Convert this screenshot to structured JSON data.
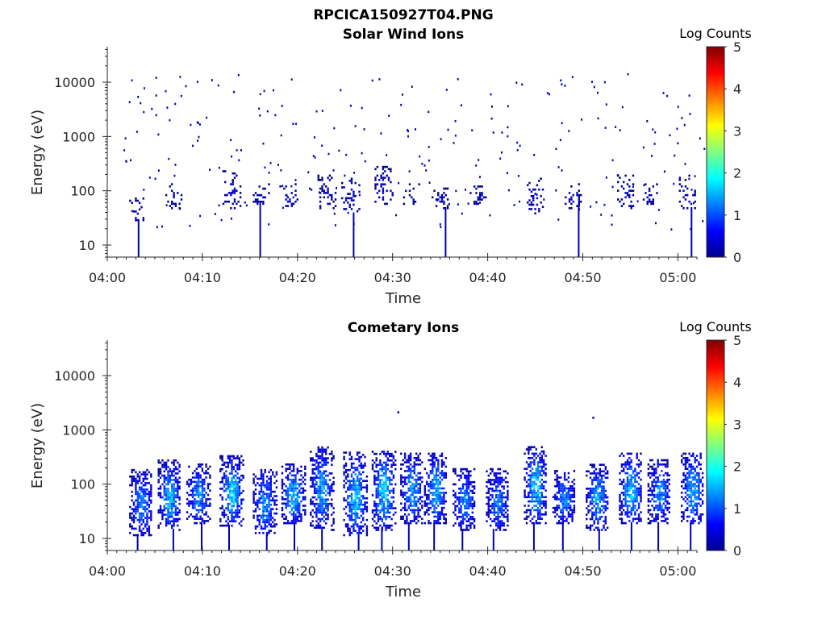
{
  "figure_title": "RPCICA150927T04.PNG",
  "chart_data": [
    {
      "type": "heatmap",
      "title": "Solar Wind Ions",
      "xlabel": "Time",
      "ylabel": "Energy (eV)",
      "x_ticks": [
        "04:00",
        "04:10",
        "04:20",
        "04:30",
        "04:40",
        "04:50",
        "05:00"
      ],
      "x_range": [
        "04:00",
        "05:02"
      ],
      "y_scale": "log",
      "y_ticks": [
        10,
        100,
        1000,
        10000
      ],
      "y_range": [
        6,
        45000
      ],
      "colorbar": {
        "label": "Log Counts",
        "range": [
          0,
          5
        ],
        "ticks": [
          0,
          1,
          2,
          3,
          4,
          5
        ],
        "colormap": "jet"
      },
      "description": "sparse scattered counts, mostly log counts near 0-0.5, clustered 30-300 eV with scattered dots up to ~15000 eV",
      "bursts": [
        {
          "time": "04:03",
          "e_low": 30,
          "e_high": 80,
          "peak": 0.3
        },
        {
          "time": "04:07",
          "e_low": 50,
          "e_high": 150,
          "peak": 0.3
        },
        {
          "time": "04:13",
          "e_low": 50,
          "e_high": 250,
          "peak": 0.5
        },
        {
          "time": "04:16",
          "e_low": 60,
          "e_high": 150,
          "peak": 0.3
        },
        {
          "time": "04:19",
          "e_low": 50,
          "e_high": 150,
          "peak": 0.4
        },
        {
          "time": "04:23",
          "e_low": 50,
          "e_high": 200,
          "peak": 0.4
        },
        {
          "time": "04:25.5",
          "e_low": 40,
          "e_high": 200,
          "peak": 0.5
        },
        {
          "time": "04:29",
          "e_low": 60,
          "e_high": 300,
          "peak": 0.5
        },
        {
          "time": "04:32",
          "e_low": 60,
          "e_high": 150,
          "peak": 0.3
        },
        {
          "time": "04:35",
          "e_low": 50,
          "e_high": 120,
          "peak": 0.3
        },
        {
          "time": "04:39",
          "e_low": 60,
          "e_high": 150,
          "peak": 0.3
        },
        {
          "time": "04:45",
          "e_low": 40,
          "e_high": 200,
          "peak": 0.4
        },
        {
          "time": "04:49",
          "e_low": 50,
          "e_high": 150,
          "peak": 0.4
        },
        {
          "time": "04:54.5",
          "e_low": 50,
          "e_high": 200,
          "peak": 0.4
        },
        {
          "time": "04:57",
          "e_low": 60,
          "e_high": 150,
          "peak": 0.3
        },
        {
          "time": "05:01",
          "e_low": 50,
          "e_high": 200,
          "peak": 0.5
        }
      ]
    },
    {
      "type": "heatmap",
      "title": "Cometary Ions",
      "xlabel": "Time",
      "ylabel": "Energy (eV)",
      "x_ticks": [
        "04:00",
        "04:10",
        "04:20",
        "04:30",
        "04:40",
        "04:50",
        "05:00"
      ],
      "x_range": [
        "04:00",
        "05:02"
      ],
      "y_scale": "log",
      "y_ticks": [
        10,
        100,
        1000,
        10000
      ],
      "y_range": [
        6,
        45000
      ],
      "colorbar": {
        "label": "Log Counts",
        "range": [
          0,
          5
        ],
        "ticks": [
          0,
          1,
          2,
          3,
          4,
          5
        ],
        "colormap": "jet"
      },
      "description": "periodic bursts roughly every 3 minutes spanning ~15-400 eV, peak log counts ~1.5-2 near 60-150 eV",
      "bursts": [
        {
          "time": "04:03.5",
          "e_low": 12,
          "e_high": 200,
          "peak": 1.4
        },
        {
          "time": "04:06.5",
          "e_low": 15,
          "e_high": 300,
          "peak": 1.7
        },
        {
          "time": "04:09.5",
          "e_low": 20,
          "e_high": 250,
          "peak": 1.5
        },
        {
          "time": "04:13",
          "e_low": 18,
          "e_high": 350,
          "peak": 1.9
        },
        {
          "time": "04:16.5",
          "e_low": 12,
          "e_high": 200,
          "peak": 1.5
        },
        {
          "time": "04:19.5",
          "e_low": 20,
          "e_high": 250,
          "peak": 1.8
        },
        {
          "time": "04:22.5",
          "e_low": 15,
          "e_high": 500,
          "peak": 1.6
        },
        {
          "time": "04:26",
          "e_low": 12,
          "e_high": 400,
          "peak": 1.8
        },
        {
          "time": "04:29",
          "e_low": 15,
          "e_high": 450,
          "peak": 1.9
        },
        {
          "time": "04:32",
          "e_low": 20,
          "e_high": 400,
          "peak": 1.6
        },
        {
          "time": "04:34.5",
          "e_low": 20,
          "e_high": 400,
          "peak": 1.7
        },
        {
          "time": "04:37.5",
          "e_low": 15,
          "e_high": 200,
          "peak": 1.4
        },
        {
          "time": "04:41",
          "e_low": 15,
          "e_high": 200,
          "peak": 1.4
        },
        {
          "time": "04:45",
          "e_low": 20,
          "e_high": 550,
          "peak": 1.8
        },
        {
          "time": "04:48",
          "e_low": 20,
          "e_high": 200,
          "peak": 1.4
        },
        {
          "time": "04:51.5",
          "e_low": 15,
          "e_high": 250,
          "peak": 1.6
        },
        {
          "time": "04:55",
          "e_low": 20,
          "e_high": 400,
          "peak": 1.8
        },
        {
          "time": "04:58",
          "e_low": 20,
          "e_high": 300,
          "peak": 1.5
        },
        {
          "time": "05:01.5",
          "e_low": 20,
          "e_high": 400,
          "peak": 1.7
        }
      ],
      "isolated_points": [
        {
          "time": "04:30.5",
          "energy": 2200,
          "value": 0.3
        },
        {
          "time": "04:51",
          "energy": 1750,
          "value": 0.3
        }
      ]
    }
  ]
}
